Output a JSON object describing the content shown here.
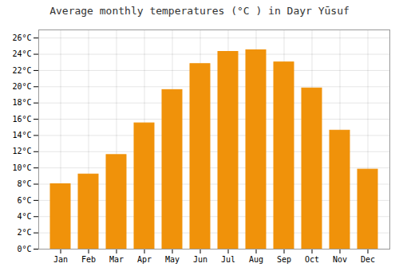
{
  "chart_data": {
    "type": "bar",
    "title": "Average monthly temperatures (°C ) in Dayr Yūsuf",
    "categories": [
      "Jan",
      "Feb",
      "Mar",
      "Apr",
      "May",
      "Jun",
      "Jul",
      "Aug",
      "Sep",
      "Oct",
      "Nov",
      "Dec"
    ],
    "values": [
      8.0,
      9.2,
      11.6,
      15.5,
      19.6,
      22.8,
      24.3,
      24.5,
      23.0,
      19.8,
      14.6,
      9.8
    ],
    "color": "#F0920A",
    "ylim": [
      0,
      27
    ],
    "yticks": [
      {
        "value": 0,
        "label": "0°C"
      },
      {
        "value": 2,
        "label": "2°C"
      },
      {
        "value": 4,
        "label": "4°C"
      },
      {
        "value": 6,
        "label": "6°C"
      },
      {
        "value": 8,
        "label": "8°C"
      },
      {
        "value": 10,
        "label": "10°C"
      },
      {
        "value": 12,
        "label": "12°C"
      },
      {
        "value": 14,
        "label": "14°C"
      },
      {
        "value": 16,
        "label": "16°C"
      },
      {
        "value": 18,
        "label": "18°C"
      },
      {
        "value": 20,
        "label": "20°C"
      },
      {
        "value": 22,
        "label": "22°C"
      },
      {
        "value": 24,
        "label": "24°C"
      },
      {
        "value": 26,
        "label": "26°C"
      }
    ],
    "grid": true
  }
}
